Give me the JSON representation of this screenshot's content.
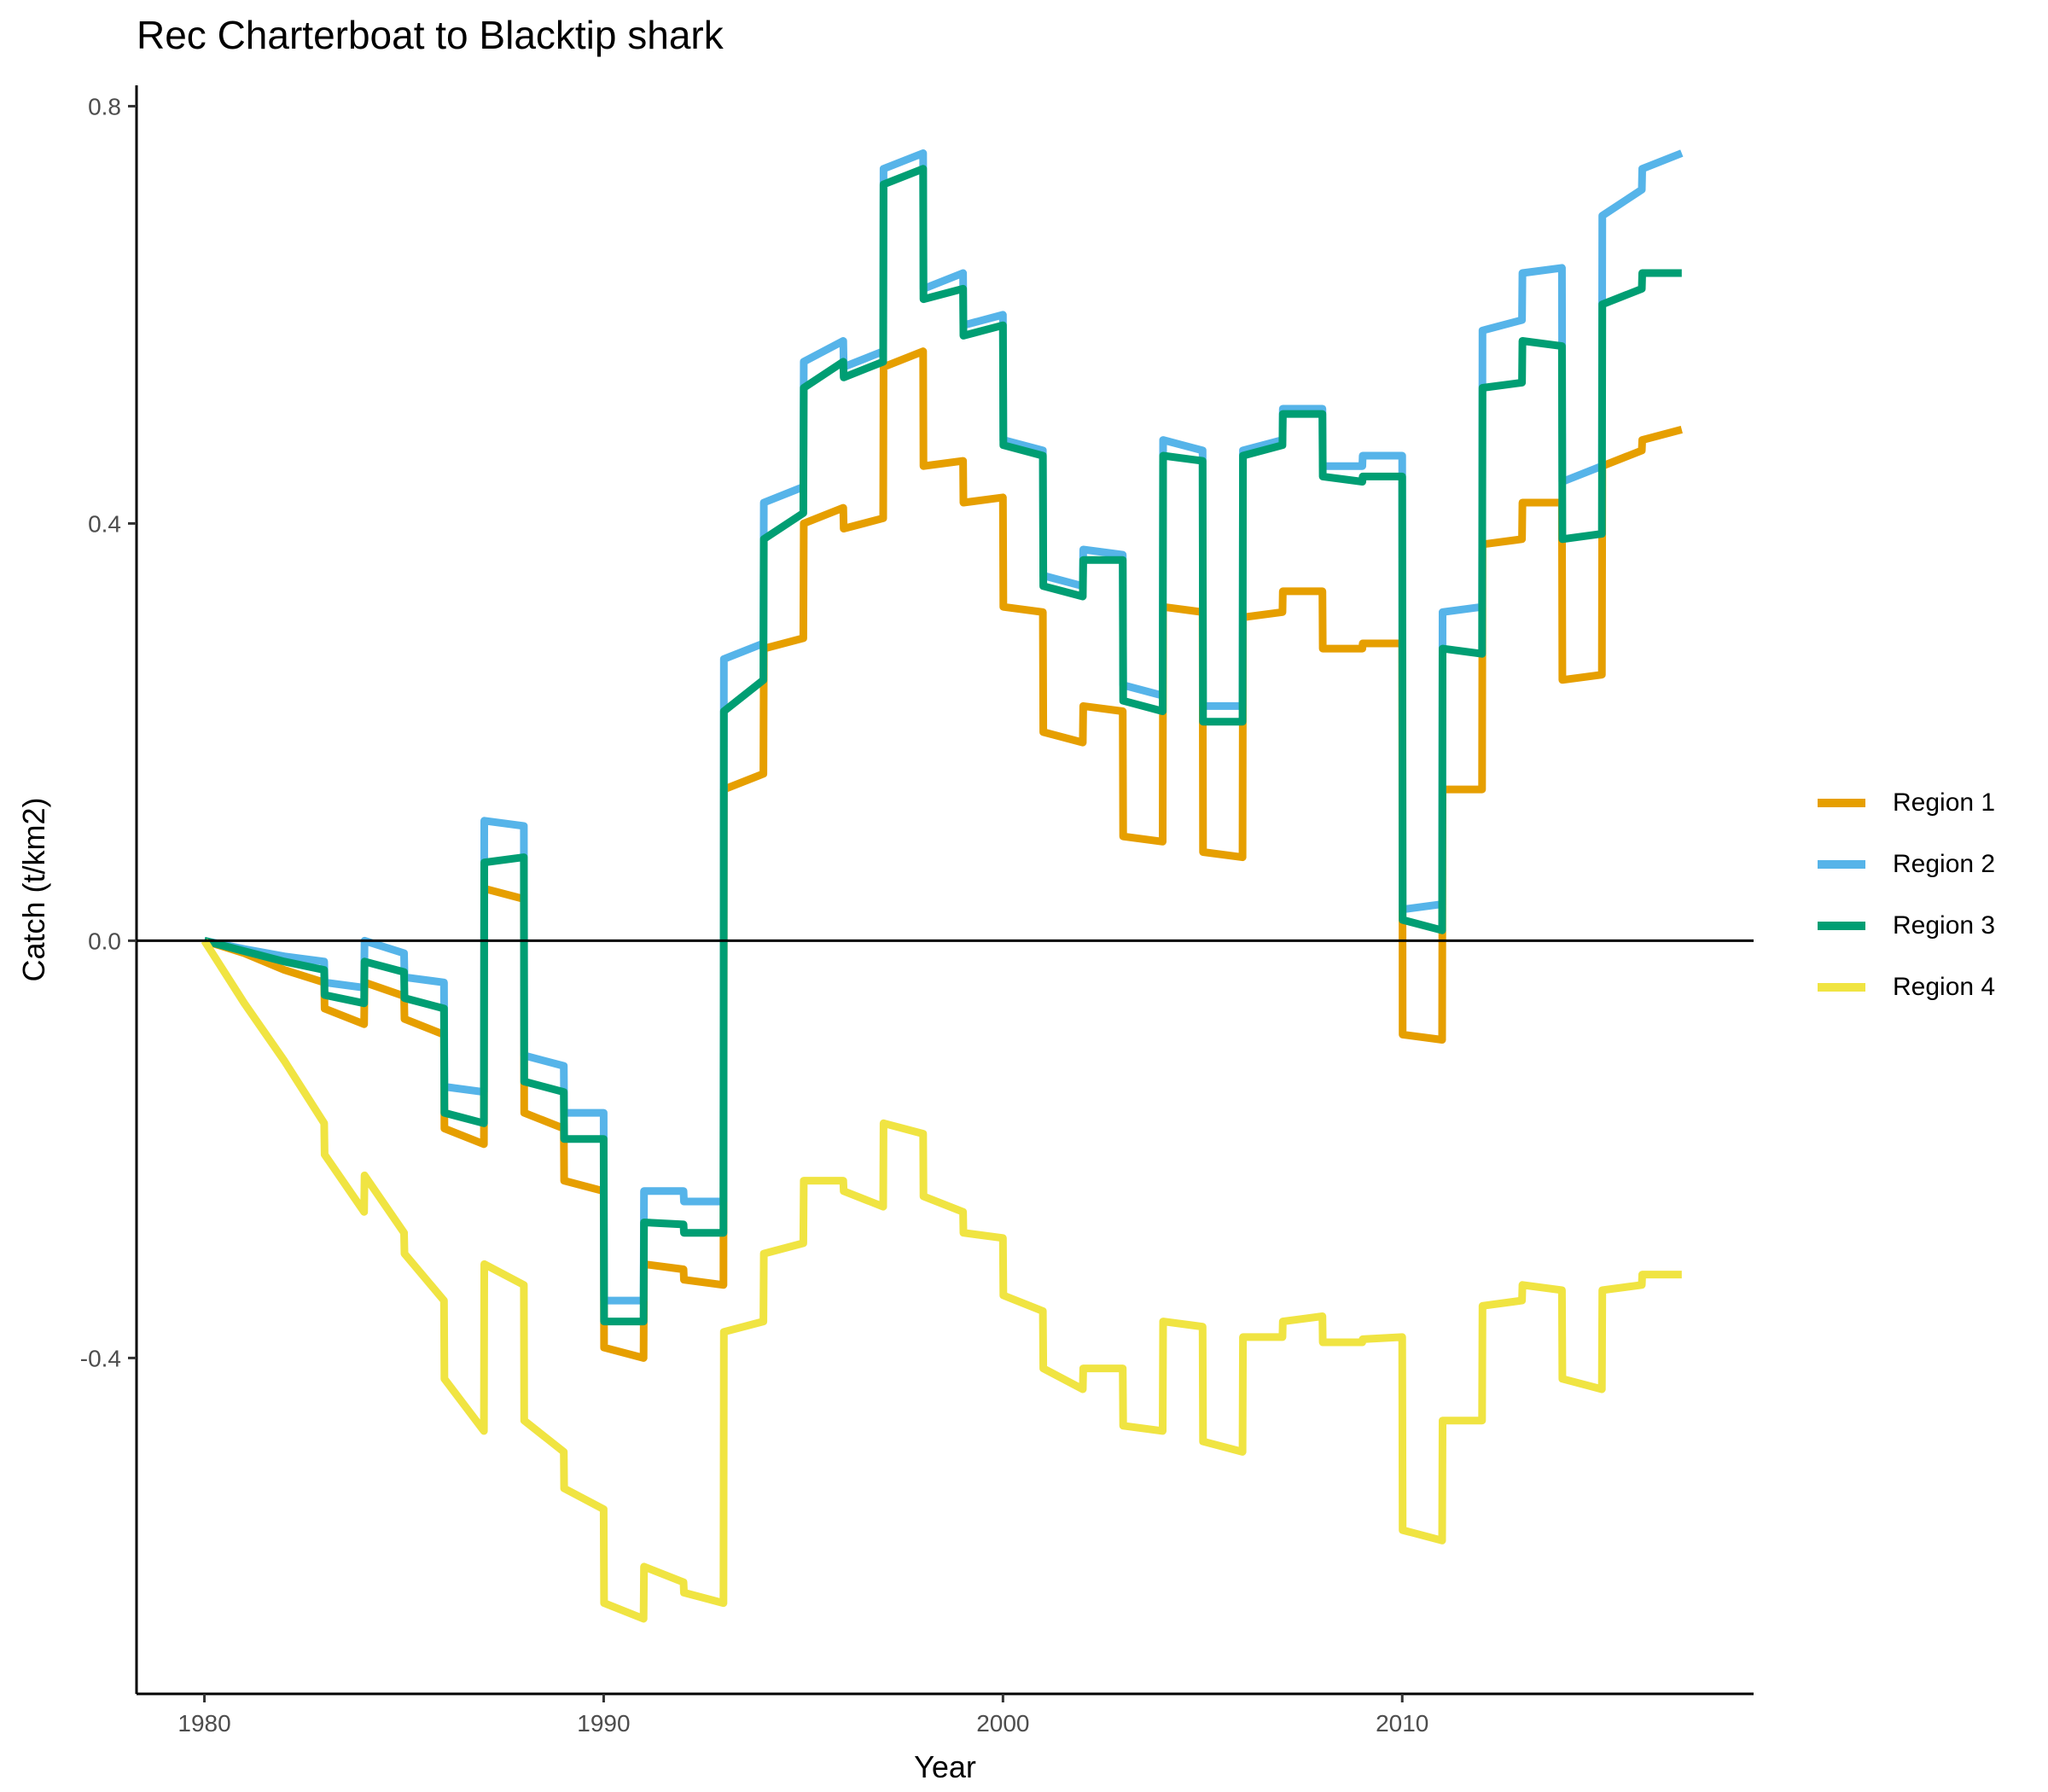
{
  "chart_data": {
    "type": "line",
    "title": "Rec Charterboat to Blacktip shark",
    "xlabel": "Year",
    "ylabel": "Catch (t/km2)",
    "xlim": [
      1978.3,
      2018.8
    ],
    "ylim": [
      -0.722,
      0.82
    ],
    "x_ticks": [
      1980,
      1990,
      2000,
      2010
    ],
    "x_tick_labels": [
      "1980",
      "1990",
      "2000",
      "2010"
    ],
    "y_ticks": [
      -0.4,
      0.0,
      0.4,
      0.8
    ],
    "y_tick_labels": [
      "-0.4",
      "0.0",
      "0.4",
      "0.8"
    ],
    "zero_line": true,
    "grid": false,
    "legend_position": "right",
    "x": [
      1980,
      1981,
      1982,
      1983,
      1983.01,
      1984,
      1984.01,
      1985,
      1985.01,
      1986,
      1986.01,
      1987,
      1987.01,
      1988,
      1988.01,
      1989,
      1989.01,
      1990,
      1990.01,
      1991,
      1991.01,
      1992,
      1992.01,
      1993,
      1993.01,
      1994,
      1994.01,
      1995,
      1995.01,
      1996,
      1996.01,
      1997,
      1997.01,
      1998,
      1998.01,
      1999,
      1999.01,
      2000,
      2000.01,
      2001,
      2001.01,
      2002,
      2002.01,
      2003,
      2003.01,
      2004,
      2004.01,
      2005,
      2005.01,
      2006,
      2006.01,
      2007,
      2007.01,
      2008,
      2008.01,
      2009,
      2009.01,
      2010,
      2010.01,
      2011,
      2011.01,
      2012,
      2012.01,
      2013,
      2013.01,
      2014,
      2014.01,
      2015,
      2015.01,
      2016,
      2016.01,
      2017
    ],
    "series": [
      {
        "name": "Region 1",
        "color": "#E69F00",
        "values": [
          0,
          -0.012,
          -0.028,
          -0.04,
          -0.065,
          -0.08,
          -0.04,
          -0.053,
          -0.075,
          -0.09,
          -0.18,
          -0.195,
          0.05,
          0.04,
          -0.165,
          -0.18,
          -0.23,
          -0.24,
          -0.39,
          -0.4,
          -0.31,
          -0.315,
          -0.325,
          -0.33,
          0.145,
          0.16,
          0.28,
          0.29,
          0.4,
          0.415,
          0.395,
          0.405,
          0.55,
          0.565,
          0.455,
          0.46,
          0.42,
          0.425,
          0.32,
          0.315,
          0.2,
          0.19,
          0.225,
          0.22,
          0.1,
          0.095,
          0.32,
          0.315,
          0.085,
          0.08,
          0.31,
          0.315,
          0.335,
          0.335,
          0.28,
          0.28,
          0.285,
          0.285,
          -0.09,
          -0.095,
          0.145,
          0.145,
          0.38,
          0.385,
          0.42,
          0.42,
          0.25,
          0.255,
          0.455,
          0.47,
          0.48,
          0.49
        ]
      },
      {
        "name": "Region 2",
        "color": "#56B4E9",
        "values": [
          0,
          -0.008,
          -0.015,
          -0.02,
          -0.04,
          -0.045,
          0,
          -0.012,
          -0.035,
          -0.04,
          -0.14,
          -0.145,
          0.115,
          0.11,
          -0.11,
          -0.12,
          -0.165,
          -0.165,
          -0.345,
          -0.345,
          -0.24,
          -0.24,
          -0.25,
          -0.25,
          0.27,
          0.285,
          0.42,
          0.435,
          0.555,
          0.575,
          0.55,
          0.565,
          0.74,
          0.755,
          0.625,
          0.64,
          0.59,
          0.6,
          0.48,
          0.47,
          0.35,
          0.34,
          0.375,
          0.37,
          0.245,
          0.235,
          0.48,
          0.47,
          0.225,
          0.225,
          0.47,
          0.48,
          0.51,
          0.51,
          0.455,
          0.455,
          0.465,
          0.465,
          0.03,
          0.035,
          0.315,
          0.32,
          0.585,
          0.595,
          0.64,
          0.645,
          0.44,
          0.455,
          0.695,
          0.72,
          0.74,
          0.755
        ]
      },
      {
        "name": "Region 3",
        "color": "#009E73",
        "values": [
          0,
          -0.01,
          -0.02,
          -0.028,
          -0.052,
          -0.06,
          -0.02,
          -0.03,
          -0.055,
          -0.065,
          -0.165,
          -0.175,
          0.075,
          0.08,
          -0.135,
          -0.145,
          -0.19,
          -0.19,
          -0.365,
          -0.365,
          -0.27,
          -0.272,
          -0.28,
          -0.28,
          0.22,
          0.25,
          0.385,
          0.41,
          0.53,
          0.555,
          0.54,
          0.555,
          0.725,
          0.74,
          0.615,
          0.625,
          0.58,
          0.59,
          0.475,
          0.465,
          0.34,
          0.33,
          0.365,
          0.365,
          0.23,
          0.22,
          0.465,
          0.46,
          0.21,
          0.21,
          0.465,
          0.475,
          0.505,
          0.505,
          0.445,
          0.44,
          0.445,
          0.445,
          0.02,
          0.01,
          0.28,
          0.275,
          0.53,
          0.535,
          0.575,
          0.57,
          0.385,
          0.39,
          0.61,
          0.625,
          0.64,
          0.64
        ]
      },
      {
        "name": "Region 4",
        "color": "#F0E442",
        "values": [
          0,
          -0.06,
          -0.115,
          -0.175,
          -0.205,
          -0.26,
          -0.225,
          -0.28,
          -0.3,
          -0.345,
          -0.42,
          -0.47,
          -0.31,
          -0.33,
          -0.46,
          -0.49,
          -0.525,
          -0.545,
          -0.635,
          -0.65,
          -0.6,
          -0.615,
          -0.625,
          -0.635,
          -0.375,
          -0.365,
          -0.3,
          -0.29,
          -0.23,
          -0.23,
          -0.24,
          -0.255,
          -0.175,
          -0.185,
          -0.245,
          -0.26,
          -0.28,
          -0.285,
          -0.34,
          -0.355,
          -0.41,
          -0.43,
          -0.41,
          -0.41,
          -0.465,
          -0.47,
          -0.365,
          -0.37,
          -0.48,
          -0.49,
          -0.38,
          -0.38,
          -0.365,
          -0.36,
          -0.385,
          -0.385,
          -0.382,
          -0.38,
          -0.565,
          -0.575,
          -0.46,
          -0.46,
          -0.35,
          -0.345,
          -0.33,
          -0.335,
          -0.42,
          -0.43,
          -0.335,
          -0.33,
          -0.32,
          -0.32
        ]
      }
    ]
  }
}
